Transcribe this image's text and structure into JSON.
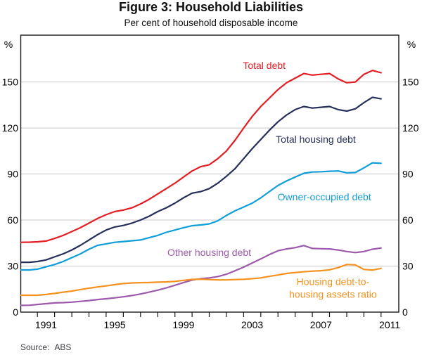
{
  "page": {
    "title": "Figure 3: Household Liabilities",
    "subtitle": "Per cent of household disposable income",
    "source_label": "Source:",
    "source_value": "ABS"
  },
  "chart_data": {
    "type": "line",
    "title": "Figure 3: Household Liabilities",
    "subtitle": "Per cent of household disposable income",
    "source": "ABS",
    "unit_left": "%",
    "unit_right": "%",
    "grid": true,
    "legend": "inline-labels",
    "xlim": [
      1990.03,
      2012.03
    ],
    "ylim": [
      0,
      180.5
    ],
    "y_gridlines": [
      30,
      60,
      90,
      120,
      150
    ],
    "y_tick_labels": [
      0,
      30,
      60,
      90,
      120,
      150
    ],
    "x_minor_tick_years": [
      1991,
      1992,
      1993,
      1994,
      1995,
      1996,
      1997,
      1998,
      1999,
      2000,
      2001,
      2002,
      2003,
      2004,
      2005,
      2006,
      2007,
      2008,
      2009,
      2010,
      2011
    ],
    "x_label_years": [
      1991,
      1995,
      1999,
      2003,
      2007,
      2011
    ],
    "colors": {
      "axis": "#1a1a1a",
      "grid": "#c9c9c9",
      "tick_label": "#000000"
    },
    "x": [
      1990.05,
      1990.55,
      1991,
      1991.5,
      1992,
      1992.5,
      1993,
      1993.5,
      1994,
      1994.5,
      1995,
      1995.5,
      1996,
      1996.5,
      1997,
      1997.5,
      1998,
      1998.5,
      1999,
      1999.5,
      2000,
      2000.5,
      2001,
      2001.5,
      2002,
      2002.5,
      2003,
      2003.5,
      2004,
      2004.5,
      2005,
      2005.5,
      2006,
      2006.5,
      2007,
      2007.5,
      2008,
      2008.5,
      2009,
      2009.5,
      2010,
      2010.5,
      2011
    ],
    "series": [
      {
        "id": "total-debt",
        "name": "Total debt",
        "color": "#e41d23",
        "label_lines": [
          "Total debt"
        ],
        "label_at": [
          2004.2,
          158.5
        ],
        "values": [
          45.5,
          45.6,
          45.8,
          46.3,
          48,
          50,
          52.5,
          55,
          58,
          61,
          63.5,
          65.5,
          66.5,
          68,
          70.5,
          73.5,
          77,
          80.5,
          84,
          88,
          92,
          94.8,
          96,
          100,
          105,
          112,
          120,
          127.5,
          134,
          139.5,
          145,
          149.5,
          152.5,
          155.5,
          154.5,
          155,
          155.5,
          152,
          149.5,
          150,
          155,
          157.5,
          156
        ]
      },
      {
        "id": "total-housing-debt",
        "name": "Total housing debt",
        "color": "#252f5a",
        "label_lines": [
          "Total housing debt"
        ],
        "label_at": [
          2007.2,
          110.5
        ],
        "values": [
          32.5,
          32.5,
          33,
          34,
          36,
          38,
          40.5,
          43.5,
          47,
          50.5,
          53.5,
          55.5,
          56.5,
          58,
          60,
          62.5,
          65.5,
          68,
          71,
          74.5,
          77.5,
          78.5,
          80.5,
          84,
          88.5,
          93.5,
          100,
          106.5,
          112.5,
          118.5,
          124,
          128.5,
          132,
          134,
          133,
          133.5,
          134,
          132,
          131,
          132.5,
          136.5,
          140,
          139
        ]
      },
      {
        "id": "owner-occupied-debt",
        "name": "Owner-occupied debt",
        "color": "#0f9ed9",
        "label_lines": [
          "Owner-occupied debt"
        ],
        "label_at": [
          2007.7,
          72.8
        ],
        "values": [
          27.5,
          27.5,
          28,
          29.5,
          31,
          33,
          35.5,
          38,
          41,
          43.5,
          44.5,
          45.5,
          46,
          46.5,
          47,
          48.5,
          50,
          52,
          53.5,
          55,
          56.3,
          56.8,
          57.5,
          59.5,
          63,
          66,
          68.5,
          71,
          74.5,
          78.5,
          82.5,
          85.5,
          88,
          90.5,
          91.3,
          91.5,
          91.8,
          92,
          90.8,
          91,
          94,
          97.3,
          97
        ]
      },
      {
        "id": "other-housing-debt",
        "name": "Other housing debt",
        "color": "#9d59ab",
        "label_lines": [
          "Other housing debt"
        ],
        "label_at": [
          2001.0,
          36.6
        ],
        "values": [
          4.4,
          4.5,
          5,
          5.5,
          6,
          6.2,
          6.5,
          7,
          7.5,
          8.2,
          8.7,
          9.3,
          10,
          10.8,
          11.8,
          13,
          14.3,
          15.8,
          17.5,
          19.3,
          20.9,
          21.8,
          22.3,
          23.2,
          24.7,
          27,
          29.3,
          32,
          34.7,
          37.5,
          40,
          41.2,
          42,
          43.4,
          41.5,
          41.3,
          41.2,
          40.5,
          39.5,
          38.8,
          39.5,
          41,
          41.8
        ]
      },
      {
        "id": "housing-debt-to-housing-assets-ratio",
        "name": "Housing debt-to-housing assets ratio",
        "color": "#f5921e",
        "label_lines": [
          "Housing debt-to-",
          "housing assets ratio"
        ],
        "label_at": [
          2008.2,
          17.6
        ],
        "values": [
          11,
          11,
          11,
          11.5,
          12.2,
          13,
          13.7,
          14.7,
          15.6,
          16.4,
          17.1,
          17.9,
          18.6,
          19,
          19.2,
          19.3,
          19.5,
          19.7,
          20,
          20.7,
          21.3,
          21.5,
          21.2,
          21,
          21,
          21.2,
          21.4,
          21.8,
          22.3,
          23.3,
          24.2,
          25.2,
          25.8,
          26.3,
          26.7,
          27,
          27.6,
          29,
          31,
          30.8,
          27.8,
          27.4,
          28.5
        ]
      }
    ]
  }
}
